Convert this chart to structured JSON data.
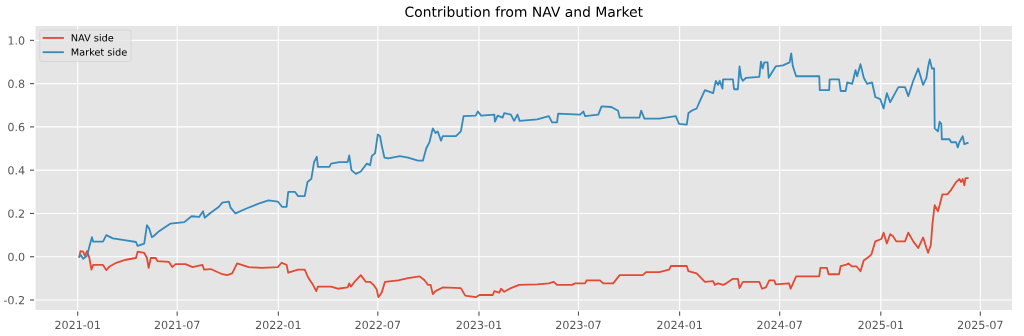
{
  "chart_data": {
    "type": "line",
    "title": "Contribution from NAV and Market",
    "xlim": [
      "2020-10-15",
      "2025-08-29"
    ],
    "xticks": [
      {
        "value": "2021-01-01",
        "label": "2021-01"
      },
      {
        "value": "2021-07-01",
        "label": "2021-07"
      },
      {
        "value": "2022-01-01",
        "label": "2022-01"
      },
      {
        "value": "2022-07-01",
        "label": "2022-07"
      },
      {
        "value": "2023-01-01",
        "label": "2023-01"
      },
      {
        "value": "2023-07-01",
        "label": "2023-07"
      },
      {
        "value": "2024-01-01",
        "label": "2024-01"
      },
      {
        "value": "2024-07-01",
        "label": "2024-07"
      },
      {
        "value": "2025-01-01",
        "label": "2025-01"
      },
      {
        "value": "2025-07-01",
        "label": "2025-07"
      }
    ],
    "ylim": [
      -0.25,
      1.07
    ],
    "yticks": [
      {
        "value": -0.2,
        "label": "-0.2"
      },
      {
        "value": 0,
        "label": "0.0"
      },
      {
        "value": 0.2,
        "label": "0.2"
      },
      {
        "value": 0.4,
        "label": "0.4"
      },
      {
        "value": 0.6,
        "label": "0.6"
      },
      {
        "value": 0.8,
        "label": "0.8"
      },
      {
        "value": 1,
        "label": "1.0"
      }
    ],
    "grid": true,
    "legend": "top left",
    "line_style": "solid",
    "marker": "none",
    "series": [
      {
        "name": "NAV side",
        "color": "#e24a33",
        "x": [
          "2021-01-04",
          "2021-01-06",
          "2021-01-11",
          "2021-01-14",
          "2021-01-18",
          "2021-01-22",
          "2021-01-26",
          "2021-01-29",
          "2021-02-16",
          "2021-02-22",
          "2021-02-28",
          "2021-03-12",
          "2021-03-30",
          "2021-04-17",
          "2021-04-20",
          "2021-05-02",
          "2021-05-07",
          "2021-05-10",
          "2021-05-14",
          "2021-05-23",
          "2021-05-26",
          "2021-06-16",
          "2021-06-22",
          "2021-06-28",
          "2021-07-16",
          "2021-07-29",
          "2021-08-16",
          "2021-08-19",
          "2021-08-31",
          "2021-09-21",
          "2021-09-30",
          "2021-10-09",
          "2021-10-18",
          "2021-11-08",
          "2021-12-02",
          "2021-12-31",
          "2022-01-07",
          "2022-01-16",
          "2022-01-19",
          "2022-02-06",
          "2022-02-18",
          "2022-02-24",
          "2022-03-05",
          "2022-03-11",
          "2022-03-14",
          "2022-04-07",
          "2022-04-19",
          "2022-05-07",
          "2022-05-10",
          "2022-05-13",
          "2022-05-22",
          "2022-05-31",
          "2022-06-09",
          "2022-06-17",
          "2022-06-23",
          "2022-06-29",
          "2022-07-02",
          "2022-07-08",
          "2022-07-14",
          "2022-08-07",
          "2022-08-25",
          "2022-09-15",
          "2022-09-24",
          "2022-09-30",
          "2022-10-05",
          "2022-10-09",
          "2022-10-14",
          "2022-10-27",
          "2022-11-29",
          "2022-12-07",
          "2022-12-26",
          "2023-01-02",
          "2023-01-26",
          "2023-01-29",
          "2023-02-07",
          "2023-02-10",
          "2023-02-16",
          "2023-02-28",
          "2023-03-15",
          "2023-04-17",
          "2023-05-08",
          "2023-05-17",
          "2023-05-23",
          "2023-06-19",
          "2023-06-25",
          "2023-07-13",
          "2023-07-16",
          "2023-08-09",
          "2023-08-15",
          "2023-09-02",
          "2023-09-14",
          "2023-10-26",
          "2023-11-01",
          "2023-11-25",
          "2023-12-13",
          "2023-12-16",
          "2024-01-14",
          "2024-01-17",
          "2024-02-01",
          "2024-02-16",
          "2024-03-02",
          "2024-03-05",
          "2024-03-11",
          "2024-03-20",
          "2024-03-26",
          "2024-04-07",
          "2024-04-16",
          "2024-04-19",
          "2024-04-25",
          "2024-05-25",
          "2024-05-30",
          "2024-06-06",
          "2024-06-12",
          "2024-06-21",
          "2024-06-24",
          "2024-07-18",
          "2024-07-21",
          "2024-07-31",
          "2024-09-11",
          "2024-09-13",
          "2024-09-25",
          "2024-09-28",
          "2024-10-17",
          "2024-10-20",
          "2024-10-29",
          "2024-11-03",
          "2024-11-09",
          "2024-11-18",
          "2024-11-25",
          "2024-12-01",
          "2024-12-09",
          "2024-12-15",
          "2024-12-22",
          "2025-01-02",
          "2025-01-06",
          "2025-01-12",
          "2025-01-18",
          "2025-01-23",
          "2025-01-29",
          "2025-02-14",
          "2025-02-20",
          "2025-03-01",
          "2025-03-10",
          "2025-03-19",
          "2025-03-25",
          "2025-03-28",
          "2025-04-02",
          "2025-04-05",
          "2025-04-09",
          "2025-04-15",
          "2025-04-18",
          "2025-04-23",
          "2025-05-02",
          "2025-05-09",
          "2025-05-18",
          "2025-05-24",
          "2025-05-27",
          "2025-05-30",
          "2025-06-02",
          "2025-06-04",
          "2025-06-08"
        ],
        "values": [
          0.0,
          0.026,
          0.023,
          0.004,
          0.026,
          -0.003,
          -0.06,
          -0.038,
          -0.038,
          -0.062,
          -0.045,
          -0.028,
          -0.014,
          -0.006,
          0.023,
          0.018,
          -0.006,
          -0.052,
          -0.006,
          -0.006,
          -0.02,
          -0.024,
          -0.048,
          -0.034,
          -0.034,
          -0.048,
          -0.038,
          -0.06,
          -0.057,
          -0.081,
          -0.085,
          -0.077,
          -0.031,
          -0.048,
          -0.052,
          -0.048,
          -0.028,
          -0.038,
          -0.074,
          -0.06,
          -0.06,
          -0.095,
          -0.13,
          -0.159,
          -0.138,
          -0.138,
          -0.148,
          -0.142,
          -0.123,
          -0.138,
          -0.109,
          -0.085,
          -0.116,
          -0.116,
          -0.13,
          -0.152,
          -0.187,
          -0.166,
          -0.116,
          -0.109,
          -0.099,
          -0.091,
          -0.109,
          -0.13,
          -0.13,
          -0.173,
          -0.159,
          -0.142,
          -0.145,
          -0.18,
          -0.187,
          -0.177,
          -0.177,
          -0.159,
          -0.166,
          -0.148,
          -0.162,
          -0.145,
          -0.13,
          -0.128,
          -0.123,
          -0.116,
          -0.13,
          -0.13,
          -0.123,
          -0.123,
          -0.109,
          -0.109,
          -0.123,
          -0.123,
          -0.085,
          -0.085,
          -0.071,
          -0.071,
          -0.06,
          -0.043,
          -0.043,
          -0.067,
          -0.077,
          -0.116,
          -0.113,
          -0.13,
          -0.123,
          -0.13,
          -0.123,
          -0.102,
          -0.102,
          -0.145,
          -0.116,
          -0.116,
          -0.148,
          -0.142,
          -0.109,
          -0.109,
          -0.128,
          -0.123,
          -0.148,
          -0.091,
          -0.091,
          -0.052,
          -0.052,
          -0.081,
          -0.081,
          -0.043,
          -0.038,
          -0.031,
          -0.045,
          -0.045,
          -0.067,
          -0.017,
          -0.003,
          0.011,
          0.071,
          0.082,
          0.111,
          0.061,
          0.104,
          0.096,
          0.071,
          0.071,
          0.111,
          0.071,
          0.04,
          0.089,
          0.04,
          0.018,
          0.054,
          0.153,
          0.238,
          0.21,
          0.238,
          0.288,
          0.288,
          0.309,
          0.345,
          0.359,
          0.345,
          0.359,
          0.33,
          0.363,
          0.363
        ]
      },
      {
        "name": "Market side",
        "color": "#348abd",
        "x": [
          "2021-01-04",
          "2021-01-06",
          "2021-01-11",
          "2021-01-18",
          "2021-01-23",
          "2021-01-27",
          "2021-01-29",
          "2021-02-16",
          "2021-02-22",
          "2021-03-06",
          "2021-03-30",
          "2021-04-17",
          "2021-04-20",
          "2021-05-02",
          "2021-05-07",
          "2021-05-11",
          "2021-05-16",
          "2021-05-20",
          "2021-05-29",
          "2021-06-19",
          "2021-07-14",
          "2021-07-27",
          "2021-08-10",
          "2021-08-17",
          "2021-08-20",
          "2021-08-31",
          "2021-09-15",
          "2021-09-21",
          "2021-10-03",
          "2021-10-06",
          "2021-10-15",
          "2021-11-05",
          "2021-11-26",
          "2021-12-14",
          "2021-12-31",
          "2022-01-08",
          "2022-01-16",
          "2022-01-19",
          "2022-01-31",
          "2022-02-06",
          "2022-02-18",
          "2022-02-23",
          "2022-03-02",
          "2022-03-07",
          "2022-03-12",
          "2022-03-14",
          "2022-04-04",
          "2022-04-07",
          "2022-04-22",
          "2022-05-07",
          "2022-05-10",
          "2022-05-14",
          "2022-05-22",
          "2022-05-31",
          "2022-06-11",
          "2022-06-17",
          "2022-06-20",
          "2022-06-26",
          "2022-07-01",
          "2022-07-05",
          "2022-07-08",
          "2022-07-13",
          "2022-07-20",
          "2022-08-10",
          "2022-08-25",
          "2022-09-12",
          "2022-09-21",
          "2022-09-27",
          "2022-10-03",
          "2022-10-09",
          "2022-10-14",
          "2022-10-18",
          "2022-10-24",
          "2022-10-27",
          "2022-11-20",
          "2022-11-29",
          "2022-12-04",
          "2022-12-26",
          "2022-12-30",
          "2023-01-05",
          "2023-01-29",
          "2023-01-30",
          "2023-02-04",
          "2023-02-13",
          "2023-02-16",
          "2023-02-28",
          "2023-03-06",
          "2023-03-12",
          "2023-03-16",
          "2023-04-17",
          "2023-05-08",
          "2023-05-14",
          "2023-05-23",
          "2023-05-25",
          "2023-07-04",
          "2023-07-10",
          "2023-07-13",
          "2023-08-06",
          "2023-08-12",
          "2023-08-30",
          "2023-09-11",
          "2023-09-14",
          "2023-10-20",
          "2023-10-23",
          "2023-10-29",
          "2023-11-25",
          "2023-12-25",
          "2023-12-31",
          "2024-01-14",
          "2024-01-17",
          "2024-01-23",
          "2024-02-01",
          "2024-02-07",
          "2024-02-16",
          "2024-03-02",
          "2024-03-07",
          "2024-03-11",
          "2024-03-14",
          "2024-03-19",
          "2024-03-20",
          "2024-04-07",
          "2024-04-09",
          "2024-04-16",
          "2024-04-19",
          "2024-04-22",
          "2024-04-25",
          "2024-05-01",
          "2024-05-25",
          "2024-05-28",
          "2024-05-31",
          "2024-06-03",
          "2024-06-09",
          "2024-06-11",
          "2024-06-24",
          "2024-07-07",
          "2024-07-19",
          "2024-07-22",
          "2024-07-25",
          "2024-07-31",
          "2024-09-11",
          "2024-09-12",
          "2024-09-29",
          "2024-09-30",
          "2024-10-17",
          "2024-10-20",
          "2024-10-29",
          "2024-11-01",
          "2024-11-10",
          "2024-11-16",
          "2024-11-19",
          "2024-11-25",
          "2024-12-01",
          "2024-12-07",
          "2024-12-16",
          "2024-12-22",
          "2024-12-31",
          "2025-01-06",
          "2025-01-12",
          "2025-01-18",
          "2025-01-27",
          "2025-02-02",
          "2025-02-14",
          "2025-02-20",
          "2025-03-01",
          "2025-03-10",
          "2025-03-19",
          "2025-03-25",
          "2025-03-28",
          "2025-03-31",
          "2025-04-04",
          "2025-04-08",
          "2025-04-09",
          "2025-04-15",
          "2025-04-18",
          "2025-04-21",
          "2025-04-22",
          "2025-05-06",
          "2025-05-09",
          "2025-05-18",
          "2025-05-21",
          "2025-05-24",
          "2025-05-30",
          "2025-06-02",
          "2025-06-08"
        ],
        "values": [
          0.0,
          0.01,
          -0.01,
          0.004,
          0.054,
          0.09,
          0.07,
          0.07,
          0.1,
          0.085,
          0.075,
          0.068,
          0.05,
          0.06,
          0.146,
          0.13,
          0.09,
          0.097,
          0.118,
          0.153,
          0.16,
          0.187,
          0.184,
          0.21,
          0.18,
          0.203,
          0.231,
          0.25,
          0.255,
          0.227,
          0.2,
          0.224,
          0.245,
          0.26,
          0.255,
          0.23,
          0.23,
          0.3,
          0.3,
          0.28,
          0.28,
          0.345,
          0.36,
          0.437,
          0.462,
          0.415,
          0.415,
          0.43,
          0.437,
          0.437,
          0.468,
          0.4,
          0.383,
          0.394,
          0.43,
          0.423,
          0.465,
          0.479,
          0.565,
          0.557,
          0.515,
          0.458,
          0.454,
          0.465,
          0.458,
          0.444,
          0.444,
          0.5,
          0.53,
          0.593,
          0.572,
          0.579,
          0.536,
          0.557,
          0.557,
          0.579,
          0.65,
          0.652,
          0.671,
          0.652,
          0.657,
          0.624,
          0.652,
          0.643,
          0.664,
          0.657,
          0.628,
          0.657,
          0.628,
          0.635,
          0.65,
          0.621,
          0.621,
          0.661,
          0.657,
          0.671,
          0.65,
          0.657,
          0.695,
          0.692,
          0.675,
          0.643,
          0.643,
          0.675,
          0.638,
          0.638,
          0.65,
          0.614,
          0.61,
          0.664,
          0.675,
          0.685,
          0.72,
          0.77,
          0.756,
          0.813,
          0.794,
          0.813,
          0.777,
          0.82,
          0.82,
          0.774,
          0.774,
          0.88,
          0.827,
          0.813,
          0.827,
          0.831,
          0.902,
          0.87,
          0.898,
          0.898,
          0.827,
          0.88,
          0.884,
          0.898,
          0.94,
          0.88,
          0.834,
          0.834,
          0.77,
          0.77,
          0.82,
          0.82,
          0.766,
          0.766,
          0.806,
          0.799,
          0.862,
          0.834,
          0.89,
          0.827,
          0.799,
          0.806,
          0.738,
          0.728,
          0.685,
          0.756,
          0.714,
          0.756,
          0.784,
          0.784,
          0.742,
          0.813,
          0.87,
          0.794,
          0.827,
          0.877,
          0.912,
          0.87,
          0.87,
          0.593,
          0.579,
          0.624,
          0.614,
          0.543,
          0.543,
          0.529,
          0.529,
          0.505,
          0.529,
          0.557,
          0.52,
          0.526
        ]
      }
    ]
  }
}
